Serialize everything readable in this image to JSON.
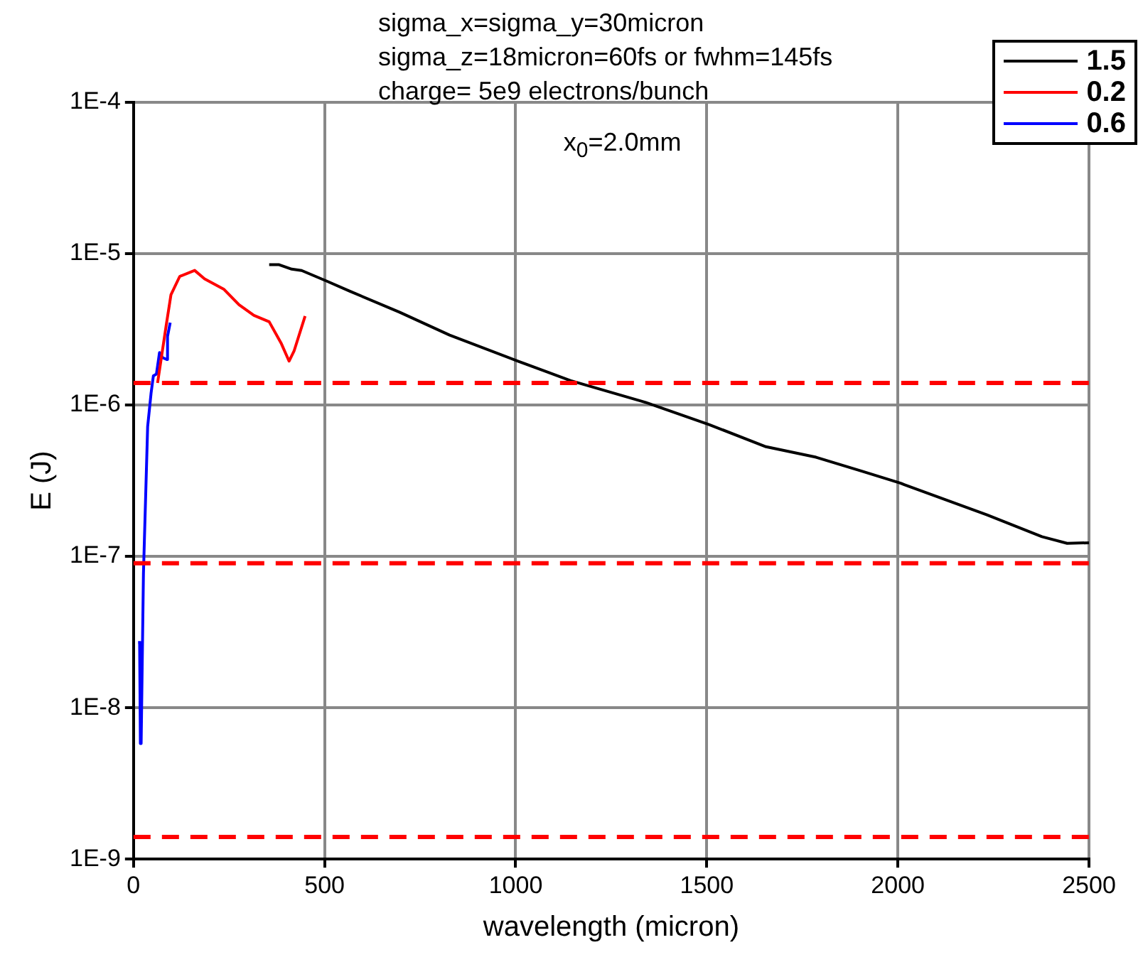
{
  "chart_data": {
    "type": "line",
    "xlabel": "wavelength (micron)",
    "ylabel": "E (J)",
    "log": "y",
    "grid": true,
    "legend": "top right",
    "marker": "none",
    "line_style": "solid",
    "xlim": [
      0,
      2500
    ],
    "xticks": [
      0,
      500,
      1000,
      1500,
      2000,
      2500
    ],
    "ylim": [
      1e-09,
      0.0001
    ],
    "yticks": [
      {
        "value": 1e-09,
        "label": "1E-9"
      },
      {
        "value": 1e-08,
        "label": "1E-8"
      },
      {
        "value": 1e-07,
        "label": "1E-7"
      },
      {
        "value": 1e-06,
        "label": "1E-6"
      },
      {
        "value": 1e-05,
        "label": "1E-5"
      },
      {
        "value": 0.0001,
        "label": "1E-4"
      }
    ],
    "annotations": [
      "sigma_x=sigma_y=30micron",
      "sigma_z=18micron=60fs or fwhm=145fs",
      "charge= 5e9 electrons/bunch",
      "x$_{0}$=2.0mm"
    ],
    "ref_lines": [
      {
        "axis": "y",
        "value": 1.4e-06,
        "color": "#ff0000",
        "line_style": "dashed"
      },
      {
        "axis": "y",
        "value": 9e-08,
        "color": "#ff0000",
        "line_style": "dashed"
      },
      {
        "axis": "y",
        "value": 1.4e-09,
        "color": "#ff0000",
        "line_style": "dashed"
      }
    ],
    "series": [
      {
        "name": "1.5",
        "color": "#000000",
        "x": [
          355,
          381,
          414,
          440,
          506,
          565,
          696,
          827,
          1006,
          1143,
          1340,
          1506,
          1655,
          1786,
          1904,
          2006,
          2233,
          2377,
          2443,
          2500
        ],
        "values": [
          8.45e-06,
          8.45e-06,
          7.9e-06,
          7.74e-06,
          6.58e-06,
          5.66e-06,
          4.11e-06,
          2.9e-06,
          1.95e-06,
          1.45e-06,
          1.04e-06,
          7.43e-07,
          5.3e-07,
          4.52e-07,
          3.67e-07,
          3.05e-07,
          1.88e-07,
          1.35e-07,
          1.22e-07,
          1.23e-07
        ]
      },
      {
        "name": "0.2",
        "color": "#ff0000",
        "x": [
          63,
          85,
          98,
          121,
          160,
          186,
          236,
          276,
          315,
          355,
          387,
          407,
          420,
          449
        ],
        "values": [
          1.4e-06,
          3.29e-06,
          5.35e-06,
          7.08e-06,
          7.75e-06,
          6.82e-06,
          5.83e-06,
          4.6e-06,
          3.91e-06,
          3.55e-06,
          2.54e-06,
          1.95e-06,
          2.27e-06,
          3.87e-06
        ]
      },
      {
        "name": "0.6",
        "color": "#0000ff",
        "x": [
          12,
          16,
          18,
          20,
          26,
          37,
          46,
          52,
          60,
          68,
          76,
          87,
          89,
          96
        ],
        "values": [
          2.7e-08,
          2.7e-08,
          5.8e-09,
          5.8e-09,
          7.7e-08,
          7.2e-07,
          1.2e-06,
          1.56e-06,
          1.6e-06,
          2.22e-06,
          2.06e-06,
          2e-06,
          2.84e-06,
          3.5e-06
        ]
      }
    ]
  }
}
